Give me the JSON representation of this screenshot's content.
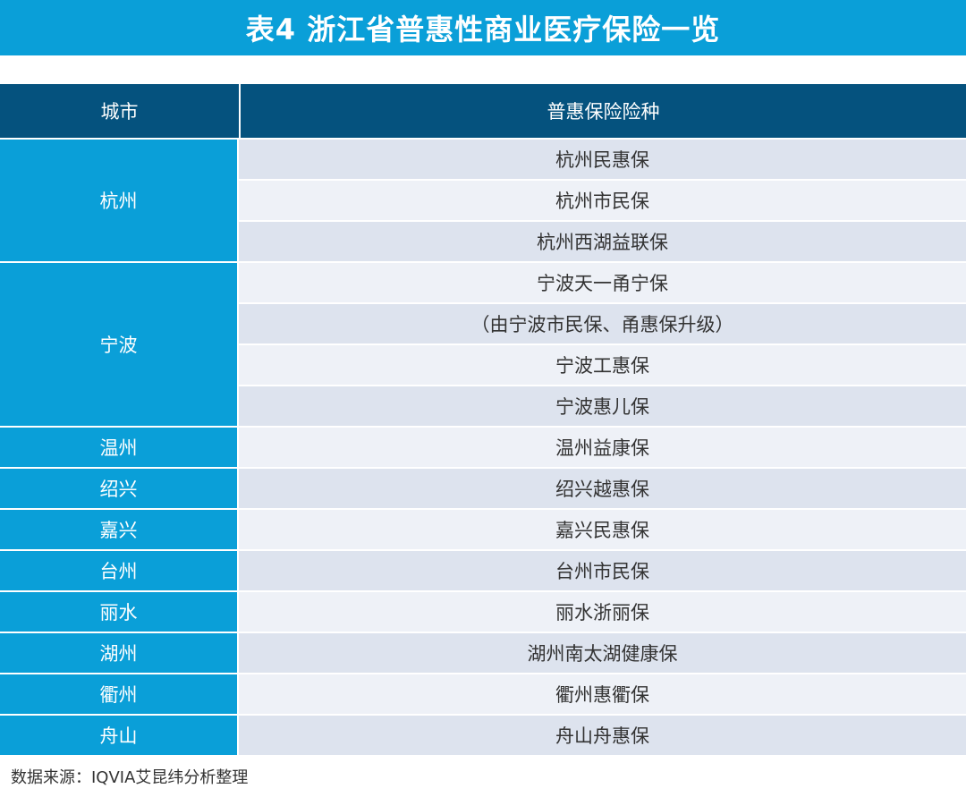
{
  "title": "表4 浙江省普惠性商业医疗保险一览",
  "header": {
    "city": "城市",
    "plan": "普惠保险险种"
  },
  "rows": [
    {
      "city": "杭州",
      "plans": [
        "杭州民惠保",
        "杭州市民保",
        "杭州西湖益联保"
      ]
    },
    {
      "city": "宁波",
      "plans": [
        "宁波天一甬宁保",
        "（由宁波市民保、甬惠保升级）",
        "宁波工惠保",
        "宁波惠儿保"
      ]
    },
    {
      "city": "温州",
      "plans": [
        "温州益康保"
      ]
    },
    {
      "city": "绍兴",
      "plans": [
        "绍兴越惠保"
      ]
    },
    {
      "city": "嘉兴",
      "plans": [
        "嘉兴民惠保"
      ]
    },
    {
      "city": "台州",
      "plans": [
        "台州市民保"
      ]
    },
    {
      "city": "丽水",
      "plans": [
        "丽水浙丽保"
      ]
    },
    {
      "city": "湖州",
      "plans": [
        "湖州南太湖健康保"
      ]
    },
    {
      "city": "衢州",
      "plans": [
        "衢州惠衢保"
      ]
    },
    {
      "city": "舟山",
      "plans": [
        "舟山舟惠保"
      ]
    }
  ],
  "source": "数据来源：IQVIA艾昆纬分析整理",
  "colors": {
    "title_bg": "#0a9fd8",
    "header_bg": "#05527e",
    "city_bg": "#0a9fd8",
    "row_shade": "#dde3ee",
    "row_light": "#eef1f7"
  }
}
